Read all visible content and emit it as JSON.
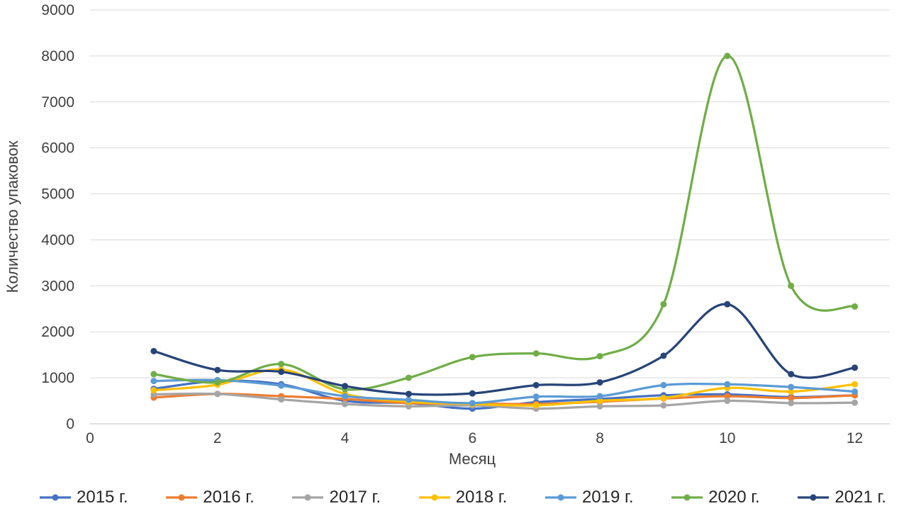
{
  "chart_data": {
    "type": "line",
    "title": "",
    "xlabel": "Месяц",
    "ylabel": "Количество упаковок",
    "x": [
      1,
      2,
      3,
      4,
      5,
      6,
      7,
      8,
      9,
      10,
      11,
      12
    ],
    "xlim": [
      0,
      12.55
    ],
    "ylim": [
      0,
      9000
    ],
    "x_ticks": [
      0,
      2,
      4,
      6,
      8,
      10,
      12
    ],
    "y_ticks": [
      0,
      1000,
      2000,
      3000,
      4000,
      5000,
      6000,
      7000,
      8000,
      9000
    ],
    "grid": "horizontal",
    "legend_position": "bottom",
    "line_style": "smooth",
    "marker": "circle",
    "series": [
      {
        "name": "2015 г.",
        "color": "#4472C4",
        "values": [
          760,
          930,
          860,
          500,
          450,
          330,
          470,
          540,
          620,
          640,
          580,
          620
        ]
      },
      {
        "name": "2016 г.",
        "color": "#ED7D31",
        "values": [
          570,
          650,
          600,
          540,
          450,
          440,
          430,
          480,
          550,
          600,
          560,
          620
        ]
      },
      {
        "name": "2017 г.",
        "color": "#A5A5A5",
        "values": [
          640,
          650,
          530,
          430,
          380,
          400,
          330,
          380,
          400,
          500,
          450,
          460
        ]
      },
      {
        "name": "2018 г.",
        "color": "#FFC000",
        "values": [
          730,
          850,
          1180,
          650,
          480,
          430,
          400,
          500,
          560,
          780,
          700,
          860
        ]
      },
      {
        "name": "2019 г.",
        "color": "#5B9BD5",
        "values": [
          930,
          950,
          830,
          600,
          520,
          450,
          590,
          600,
          840,
          860,
          800,
          700
        ]
      },
      {
        "name": "2020 г.",
        "color": "#70AD47",
        "values": [
          1080,
          900,
          1300,
          750,
          1000,
          1450,
          1530,
          1470,
          2600,
          8000,
          3000,
          2550
        ]
      },
      {
        "name": "2021 г.",
        "color": "#264478",
        "values": [
          1580,
          1170,
          1130,
          820,
          650,
          660,
          840,
          900,
          1480,
          2600,
          1080,
          1220
        ]
      }
    ]
  },
  "colors": {
    "gridline": "#D9D9D9",
    "axis_line": "#BFBFBF",
    "tick_text": "#404040",
    "legend_text": "#262626",
    "background": "#FFFFFF"
  }
}
